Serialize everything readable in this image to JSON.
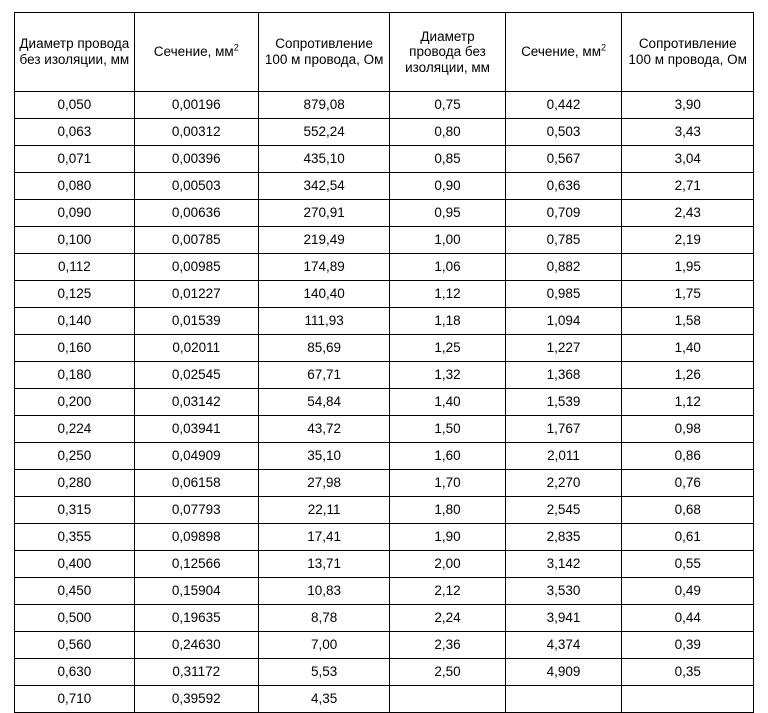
{
  "table": {
    "columns": [
      "Диаметр провода без изоляции, мм",
      "Сечение, мм",
      "Сопротивление 100 м провода, Ом",
      "Диаметр провода без изоляции, мм",
      "Сечение, мм",
      "Сопротивление 100 м провода, Ом"
    ],
    "sup_on_cols": [
      false,
      true,
      false,
      false,
      true,
      false
    ],
    "rows": [
      [
        "0,050",
        "0,00196",
        "879,08",
        "0,75",
        "0,442",
        "3,90"
      ],
      [
        "0,063",
        "0,00312",
        "552,24",
        "0,80",
        "0,503",
        "3,43"
      ],
      [
        "0,071",
        "0,00396",
        "435,10",
        "0,85",
        "0,567",
        "3,04"
      ],
      [
        "0,080",
        "0,00503",
        "342,54",
        "0,90",
        "0,636",
        "2,71"
      ],
      [
        "0,090",
        "0,00636",
        "270,91",
        "0,95",
        "0,709",
        "2,43"
      ],
      [
        "0,100",
        "0,00785",
        "219,49",
        "1,00",
        "0,785",
        "2,19"
      ],
      [
        "0,112",
        "0,00985",
        "174,89",
        "1,06",
        "0,882",
        "1,95"
      ],
      [
        "0,125",
        "0,01227",
        "140,40",
        "1,12",
        "0,985",
        "1,75"
      ],
      [
        "0,140",
        "0,01539",
        "111,93",
        "1,18",
        "1,094",
        "1,58"
      ],
      [
        "0,160",
        "0,02011",
        "85,69",
        "1,25",
        "1,227",
        "1,40"
      ],
      [
        "0,180",
        "0,02545",
        "67,71",
        "1,32",
        "1,368",
        "1,26"
      ],
      [
        "0,200",
        "0,03142",
        "54,84",
        "1,40",
        "1,539",
        "1,12"
      ],
      [
        "0,224",
        "0,03941",
        "43,72",
        "1,50",
        "1,767",
        "0,98"
      ],
      [
        "0,250",
        "0,04909",
        "35,10",
        "1,60",
        "2,011",
        "0,86"
      ],
      [
        "0,280",
        "0,06158",
        "27,98",
        "1,70",
        "2,270",
        "0,76"
      ],
      [
        "0,315",
        "0,07793",
        "22,11",
        "1,80",
        "2,545",
        "0,68"
      ],
      [
        "0,355",
        "0,09898",
        "17,41",
        "1,90",
        "2,835",
        "0,61"
      ],
      [
        "0,400",
        "0,12566",
        "13,71",
        "2,00",
        "3,142",
        "0,55"
      ],
      [
        "0,450",
        "0,15904",
        "10,83",
        "2,12",
        "3,530",
        "0,49"
      ],
      [
        "0,500",
        "0,19635",
        "8,78",
        "2,24",
        "3,941",
        "0,44"
      ],
      [
        "0,560",
        "0,24630",
        "7,00",
        "2,36",
        "4,374",
        "0,39"
      ],
      [
        "0,630",
        "0,31172",
        "5,53",
        "2,50",
        "4,909",
        "0,35"
      ],
      [
        "0,710",
        "0,39592",
        "4,35",
        "",
        "",
        ""
      ]
    ],
    "styling": {
      "border_color": "#000000",
      "text_color": "#000000",
      "background_color": "#ffffff",
      "font_family": "Arial",
      "header_fontsize_pt": 10,
      "cell_fontsize_pt": 10,
      "col_widths_pct": [
        16.2,
        16.8,
        17.8,
        15.6,
        15.8,
        17.8
      ],
      "col_align": [
        "center",
        "center",
        "center",
        "center",
        "center",
        "center"
      ]
    }
  }
}
